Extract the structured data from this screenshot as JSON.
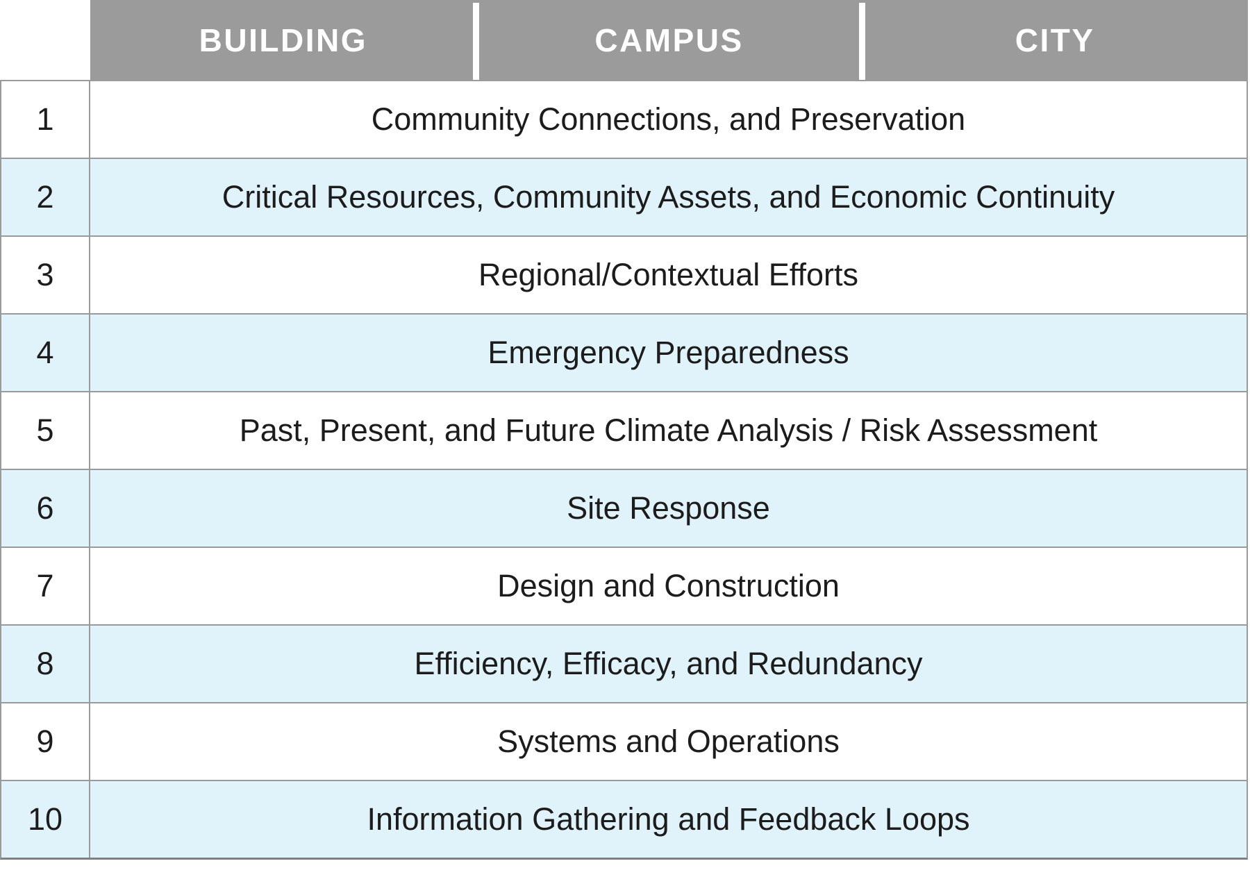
{
  "table": {
    "column_headers": [
      "BUILDING",
      "CAMPUS",
      "CITY"
    ],
    "rows": [
      {
        "num": "1",
        "text": "Community Connections, and Preservation"
      },
      {
        "num": "2",
        "text": "Critical Resources, Community Assets, and Economic Continuity"
      },
      {
        "num": "3",
        "text": "Regional/Contextual Efforts"
      },
      {
        "num": "4",
        "text": "Emergency Preparedness"
      },
      {
        "num": "5",
        "text": "Past, Present, and Future Climate Analysis / Risk Assessment"
      },
      {
        "num": "6",
        "text": "Site Response"
      },
      {
        "num": "7",
        "text": "Design and Construction"
      },
      {
        "num": "8",
        "text": "Efficiency, Efficacy, and Redundancy"
      },
      {
        "num": "9",
        "text": "Systems and Operations"
      },
      {
        "num": "10",
        "text": "Information Gathering and Feedback Loops"
      }
    ]
  },
  "colors": {
    "header_bg": "#9B9B9B",
    "header_text": "#FFFFFF",
    "row_bg": "#FFFFFF",
    "alt_row_bg": "#E1F3FA",
    "border": "#9A9A9A",
    "bottom_border": "#7F7F7F",
    "text": "#1C1C1C"
  },
  "chart_data": {
    "type": "table",
    "title": "",
    "columns": [
      "#",
      "BUILDING",
      "CAMPUS",
      "CITY"
    ],
    "rows": [
      [
        "1",
        "Community Connections, and Preservation"
      ],
      [
        "2",
        "Critical Resources, Community Assets, and Economic Continuity"
      ],
      [
        "3",
        "Regional/Contextual Efforts"
      ],
      [
        "4",
        "Emergency Preparedness"
      ],
      [
        "5",
        "Past, Present, and Future Climate Analysis / Risk Assessment"
      ],
      [
        "6",
        "Site Response"
      ],
      [
        "7",
        "Design and Construction"
      ],
      [
        "8",
        "Efficiency, Efficacy, and Redundancy"
      ],
      [
        "9",
        "Systems and Operations"
      ],
      [
        "10",
        "Information Gathering and Feedback Loops"
      ]
    ],
    "layout": {
      "row_text_spans_all_three_scale_columns": true,
      "alternating_row_shading": true,
      "header_style": "gray bar with white column dividers",
      "number_column_has_no_header": true
    }
  }
}
